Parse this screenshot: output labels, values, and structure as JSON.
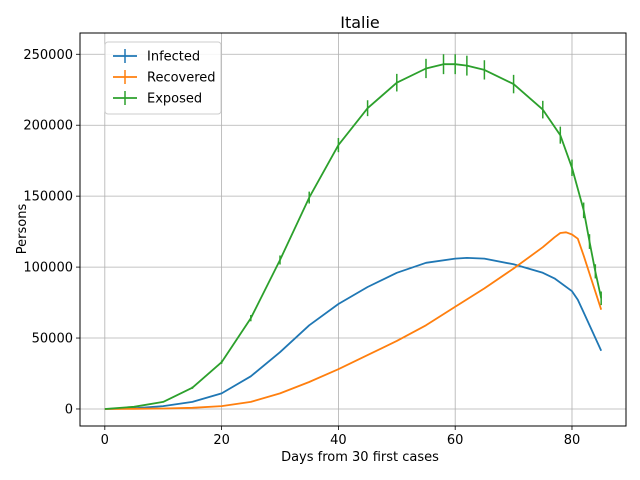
{
  "chart_data": {
    "type": "line",
    "title": "Italie",
    "xlabel": "Days from 30 first cases",
    "ylabel": "Persons",
    "xlim": [
      -4.25,
      89.25
    ],
    "ylim": [
      -12000,
      265000
    ],
    "xticks": [
      0,
      20,
      40,
      60,
      80
    ],
    "yticks": [
      0,
      50000,
      100000,
      150000,
      200000,
      250000
    ],
    "grid": true,
    "legend_position": "top-left",
    "x": [
      0,
      5,
      10,
      15,
      20,
      25,
      30,
      35,
      40,
      45,
      50,
      55,
      60,
      62,
      65,
      70,
      75,
      77,
      80,
      81,
      82,
      85
    ],
    "series": [
      {
        "name": "Infected",
        "color": "#1f77b4",
        "values": [
          0,
          500,
          2000,
          5000,
          11000,
          23000,
          40000,
          59000,
          74000,
          86000,
          96000,
          103000,
          106000,
          106500,
          106000,
          102000,
          96000,
          92000,
          83000,
          77000,
          68000,
          41000
        ]
      },
      {
        "name": "Recovered",
        "color": "#ff7f0e",
        "x": [
          0,
          5,
          10,
          15,
          20,
          25,
          30,
          35,
          40,
          45,
          50,
          55,
          60,
          65,
          70,
          75,
          77,
          78,
          79,
          80,
          81,
          82,
          85
        ],
        "values": [
          0,
          100,
          300,
          800,
          2000,
          5000,
          11000,
          19000,
          28000,
          38000,
          48000,
          59000,
          72000,
          85000,
          99000,
          114000,
          121000,
          124000,
          124500,
          123000,
          120000,
          108000,
          70000
        ]
      },
      {
        "name": "Exposed",
        "color": "#2ca02c",
        "x": [
          0,
          5,
          10,
          15,
          20,
          25,
          30,
          35,
          40,
          45,
          50,
          55,
          58,
          60,
          62,
          65,
          70,
          75,
          78,
          80,
          82,
          83,
          84,
          85
        ],
        "values": [
          0,
          1500,
          5000,
          15000,
          33000,
          64000,
          105000,
          149000,
          186000,
          212000,
          230000,
          240000,
          243000,
          243000,
          242000,
          239000,
          229000,
          211000,
          193000,
          170000,
          140000,
          118000,
          97000,
          78000
        ],
        "error": [
          0,
          200,
          400,
          800,
          1200,
          2200,
          3200,
          4200,
          5000,
          5600,
          6200,
          6800,
          7000,
          7000,
          7000,
          6800,
          6500,
          6200,
          6000,
          5800,
          5500,
          5200,
          5000,
          4800
        ]
      }
    ]
  }
}
